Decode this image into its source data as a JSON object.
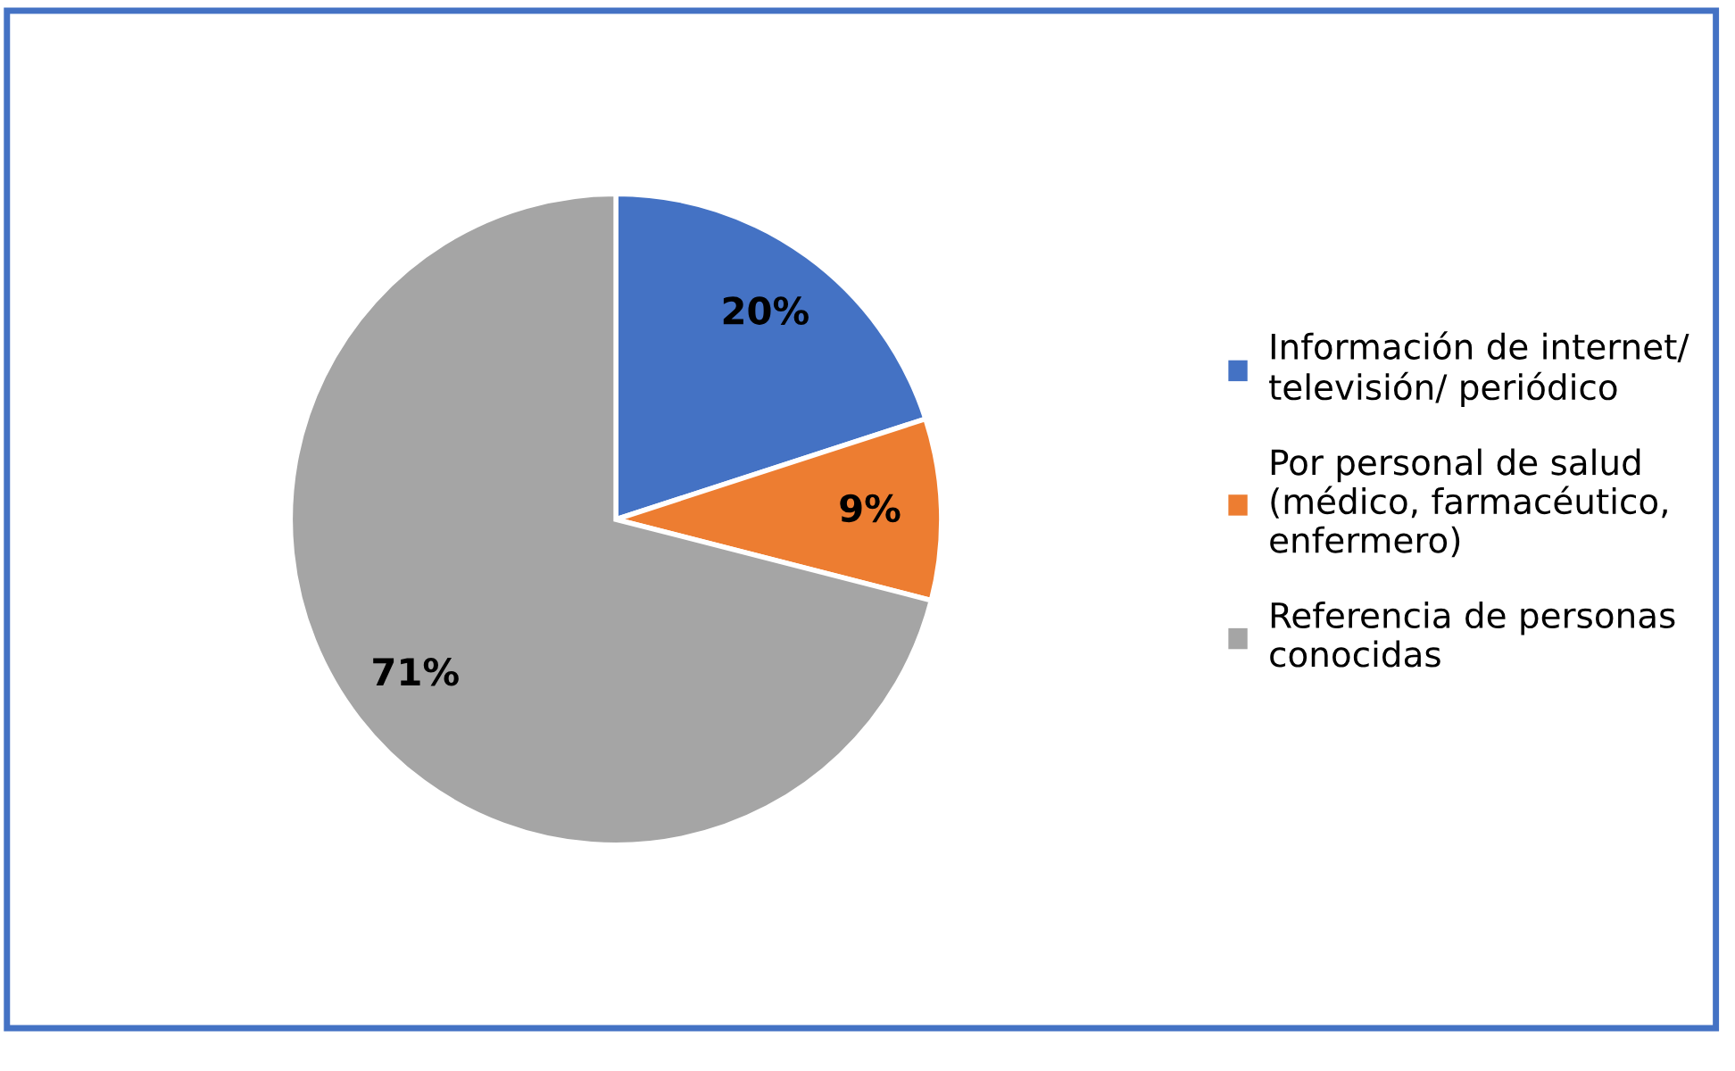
{
  "chart_data": {
    "type": "pie",
    "categories": [
      "Información de internet/ televisión/ periódico",
      "Por personal de salud (médico, farmacéutico, enfermero)",
      "Referencia de personas conocidas"
    ],
    "values": [
      20,
      9,
      71
    ],
    "colors": [
      "#4472c4",
      "#ed7d31",
      "#a5a5a5"
    ],
    "value_labels": [
      "20%",
      "9%",
      "71%"
    ],
    "legend": "right"
  }
}
